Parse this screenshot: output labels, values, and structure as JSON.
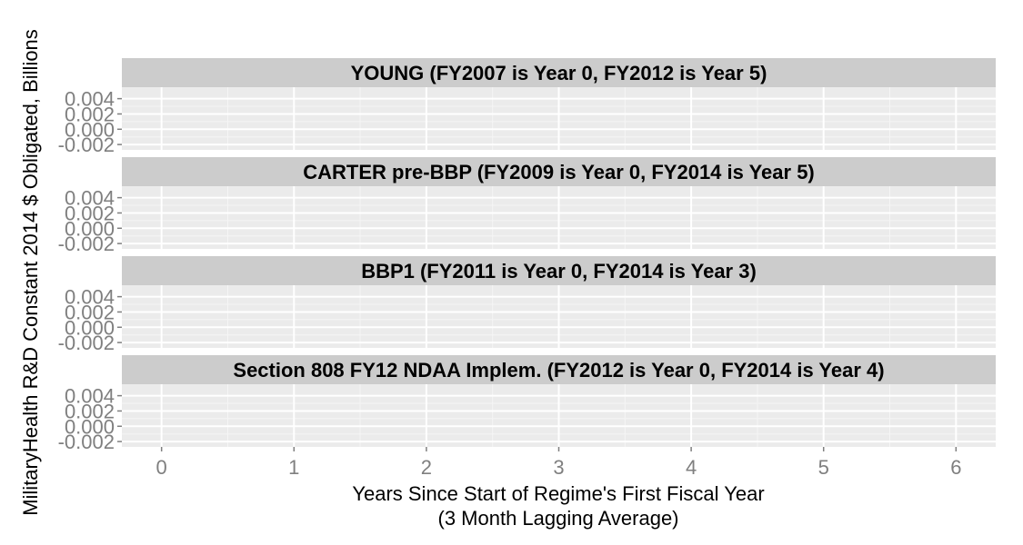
{
  "chart_data": {
    "type": "line",
    "faceted": true,
    "facets": [
      {
        "label": "YOUNG (FY2007 is Year 0, FY2012 is Year 5)",
        "series": []
      },
      {
        "label": "CARTER pre-BBP (FY2009 is Year 0, FY2014 is Year 5)",
        "series": []
      },
      {
        "label": "BBP1 (FY2011 is Year 0, FY2014 is Year 3)",
        "series": []
      },
      {
        "label": "Section 808 FY12 NDAA Implem. (FY2012 is Year 0, FY2014 is Year 4)",
        "series": []
      }
    ],
    "xlabel_line1": "Years Since Start of Regime's First Fiscal Year",
    "xlabel_line2": "(3 Month Lagging Average)",
    "ylabel": "MilitaryHealth R&D Constant 2014 $ Obligated, Billions",
    "xlim": [
      -0.3,
      6.3
    ],
    "ylim": [
      -0.0027,
      0.0055
    ],
    "x_ticks": [
      0,
      1,
      2,
      3,
      4,
      5,
      6
    ],
    "x_tick_labels": [
      "0",
      "1",
      "2",
      "3",
      "4",
      "5",
      "6"
    ],
    "y_ticks": [
      -0.002,
      0.0,
      0.002,
      0.004
    ],
    "y_tick_labels": [
      "-0.002",
      "0.000",
      "0.002",
      "0.004"
    ],
    "grid": true,
    "colors": {
      "panel_bg": "#ebebeb",
      "grid_major": "#ffffff",
      "grid_minor": "#f5f5f5",
      "strip_bg": "#cccccc",
      "tick_text": "#7f7f7f"
    }
  }
}
